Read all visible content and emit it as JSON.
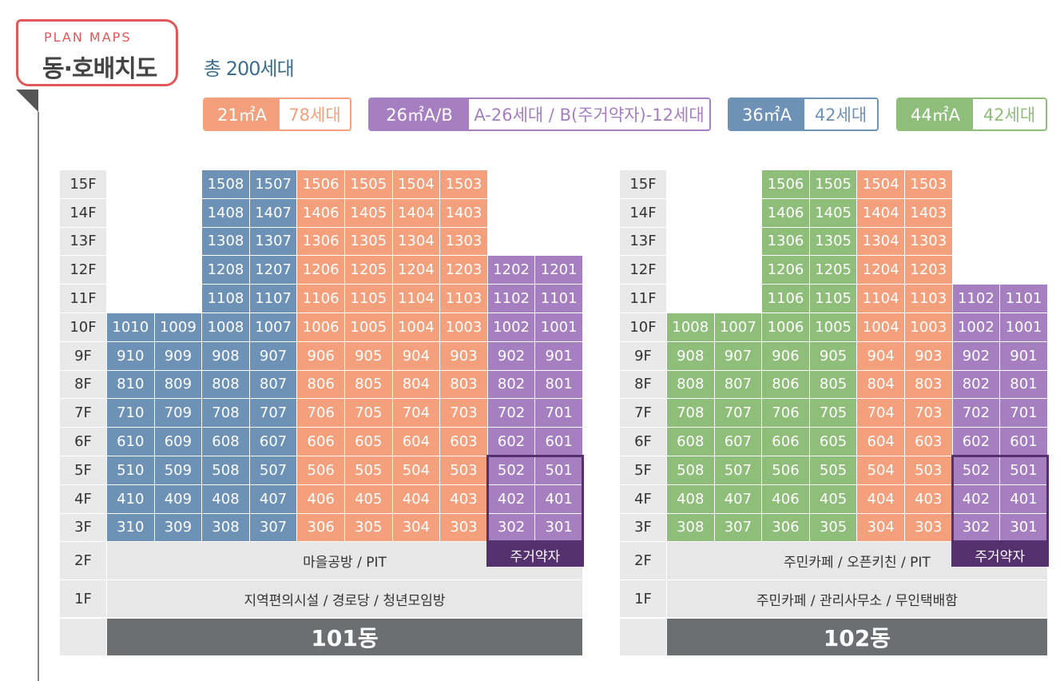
{
  "header": {
    "sub": "PLAN MAPS",
    "title": "동·호배치도",
    "total": "총 200세대"
  },
  "legend": [
    {
      "type": "21㎡A",
      "count": "78세대",
      "color": "#f4a07c"
    },
    {
      "type": "26㎡A/B",
      "count": "A-26세대 / B(주거약자)-12세대",
      "color": "#a57fc0"
    },
    {
      "type": "36㎡A",
      "count": "42세대",
      "color": "#6e92b6"
    },
    {
      "type": "44㎡A",
      "count": "42세대",
      "color": "#8fbd7a"
    }
  ],
  "floor_labels": [
    "15F",
    "14F",
    "13F",
    "12F",
    "11F",
    "10F",
    "9F",
    "8F",
    "7F",
    "6F",
    "5F",
    "4F",
    "3F",
    "2F",
    "1F"
  ],
  "buildings": [
    {
      "name": "101동",
      "floor2": "마을공방 / PIT",
      "floor1": "지역편의시설 / 경로당 / 청년모임방",
      "accessible_label": "주거약자",
      "columns": [
        {
          "unit": "10",
          "type": 2,
          "floors": [
            10,
            9,
            8,
            7,
            6,
            5,
            4,
            3
          ]
        },
        {
          "unit": "09",
          "type": 2,
          "floors": [
            10,
            9,
            8,
            7,
            6,
            5,
            4,
            3
          ]
        },
        {
          "unit": "08",
          "type": 2,
          "floors": [
            15,
            14,
            13,
            12,
            11,
            10,
            9,
            8,
            7,
            6,
            5,
            4,
            3
          ]
        },
        {
          "unit": "07",
          "type": 2,
          "floors": [
            15,
            14,
            13,
            12,
            11,
            10,
            9,
            8,
            7,
            6,
            5,
            4,
            3
          ]
        },
        {
          "unit": "06",
          "type": 0,
          "floors": [
            15,
            14,
            13,
            12,
            11,
            10,
            9,
            8,
            7,
            6,
            5,
            4,
            3
          ]
        },
        {
          "unit": "05",
          "type": 0,
          "floors": [
            15,
            14,
            13,
            12,
            11,
            10,
            9,
            8,
            7,
            6,
            5,
            4,
            3
          ]
        },
        {
          "unit": "04",
          "type": 0,
          "floors": [
            15,
            14,
            13,
            12,
            11,
            10,
            9,
            8,
            7,
            6,
            5,
            4,
            3
          ]
        },
        {
          "unit": "03",
          "type": 0,
          "floors": [
            15,
            14,
            13,
            12,
            11,
            10,
            9,
            8,
            7,
            6,
            5,
            4,
            3
          ]
        },
        {
          "unit": "02",
          "type": 1,
          "floors": [
            12,
            11,
            10,
            9,
            8,
            7,
            6,
            5,
            4,
            3
          ]
        },
        {
          "unit": "01",
          "type": 1,
          "floors": [
            12,
            11,
            10,
            9,
            8,
            7,
            6,
            5,
            4,
            3
          ]
        }
      ]
    },
    {
      "name": "102동",
      "floor2": "주민카페 / 오픈키친 / PIT",
      "floor1": "주민카페 / 관리사무소 / 무인택배함",
      "accessible_label": "주거약자",
      "columns": [
        {
          "unit": "08",
          "type": 3,
          "floors": [
            10,
            9,
            8,
            7,
            6,
            5,
            4,
            3
          ]
        },
        {
          "unit": "07",
          "type": 3,
          "floors": [
            10,
            9,
            8,
            7,
            6,
            5,
            4,
            3
          ]
        },
        {
          "unit": "06",
          "type": 3,
          "floors": [
            15,
            14,
            13,
            12,
            11,
            10,
            9,
            8,
            7,
            6,
            5,
            4,
            3
          ]
        },
        {
          "unit": "05",
          "type": 3,
          "floors": [
            15,
            14,
            13,
            12,
            11,
            10,
            9,
            8,
            7,
            6,
            5,
            4,
            3
          ]
        },
        {
          "unit": "04",
          "type": 0,
          "floors": [
            15,
            14,
            13,
            12,
            11,
            10,
            9,
            8,
            7,
            6,
            5,
            4,
            3
          ]
        },
        {
          "unit": "03",
          "type": 0,
          "floors": [
            15,
            14,
            13,
            12,
            11,
            10,
            9,
            8,
            7,
            6,
            5,
            4,
            3
          ]
        },
        {
          "unit": "02",
          "type": 1,
          "floors": [
            11,
            10,
            9,
            8,
            7,
            6,
            5,
            4,
            3
          ]
        },
        {
          "unit": "01",
          "type": 1,
          "floors": [
            11,
            10,
            9,
            8,
            7,
            6,
            5,
            4,
            3
          ]
        }
      ]
    }
  ]
}
